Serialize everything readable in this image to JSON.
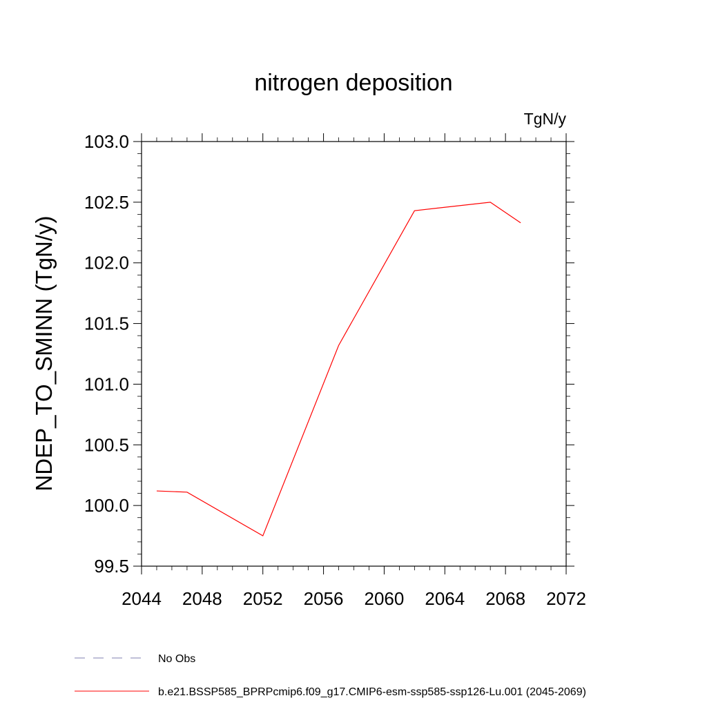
{
  "chart_data": {
    "type": "line",
    "title": "nitrogen deposition",
    "units": "TgN/y",
    "xlabel": "",
    "ylabel": "NDEP_TO_SMINN  (TgN/y)",
    "xlim": [
      2044,
      2072
    ],
    "ylim": [
      99.5,
      103.0
    ],
    "x_ticks": [
      "2044",
      "2048",
      "2052",
      "2056",
      "2060",
      "2064",
      "2068",
      "2072"
    ],
    "y_ticks": [
      "99.5",
      "100.0",
      "100.5",
      "101.0",
      "101.5",
      "102.0",
      "102.5",
      "103.0"
    ],
    "grid": false,
    "legend_position": "bottom",
    "series": [
      {
        "name": "No Obs",
        "color": "#7f7fb0",
        "style": "dashed",
        "x": [],
        "y": []
      },
      {
        "name": "b.e21.BSSP585_BPRPcmip6.f09_g17.CMIP6-esm-ssp585-ssp126-Lu.001 (2045-2069)",
        "color": "#ff0000",
        "style": "solid",
        "x": [
          2045,
          2047,
          2052,
          2057,
          2062,
          2067,
          2069
        ],
        "y": [
          100.12,
          100.11,
          99.75,
          101.32,
          102.43,
          102.5,
          102.33
        ]
      }
    ]
  }
}
